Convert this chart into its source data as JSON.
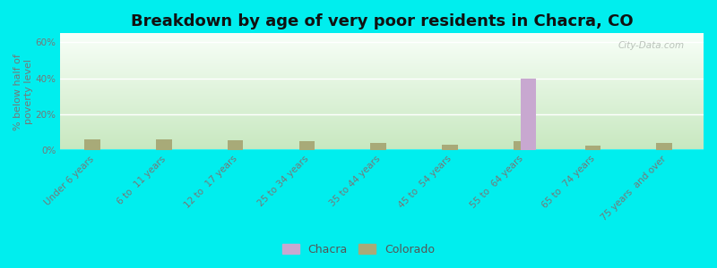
{
  "title": "Breakdown by age of very poor residents in Chacra, CO",
  "ylabel": "% below half of\npoverty level",
  "categories": [
    "Under 6 years",
    "6 to  11 years",
    "12 to  17 years",
    "25 to 34 years",
    "35 to 44 years",
    "45 to  54 years",
    "55 to  64 years",
    "65 to  74 years",
    "75 years  and over"
  ],
  "chacra_values": [
    0,
    0,
    0,
    0,
    0,
    0,
    40,
    0,
    0
  ],
  "colorado_values": [
    6,
    6,
    5.5,
    5,
    4,
    3,
    5,
    2.5,
    4
  ],
  "chacra_color": "#c8a8d0",
  "colorado_color": "#a8aa78",
  "background_color": "#00eeee",
  "plot_bg_top": "#f8fff8",
  "plot_bg_bottom": "#c8e8c0",
  "ylim": [
    0,
    65
  ],
  "yticks": [
    0,
    20,
    40,
    60
  ],
  "ytick_labels": [
    "0%",
    "20%",
    "40%",
    "60%"
  ],
  "bar_width": 0.4,
  "title_fontsize": 13,
  "axis_label_fontsize": 8,
  "tick_label_fontsize": 7.5,
  "legend_fontsize": 9,
  "watermark": "City-Data.com"
}
